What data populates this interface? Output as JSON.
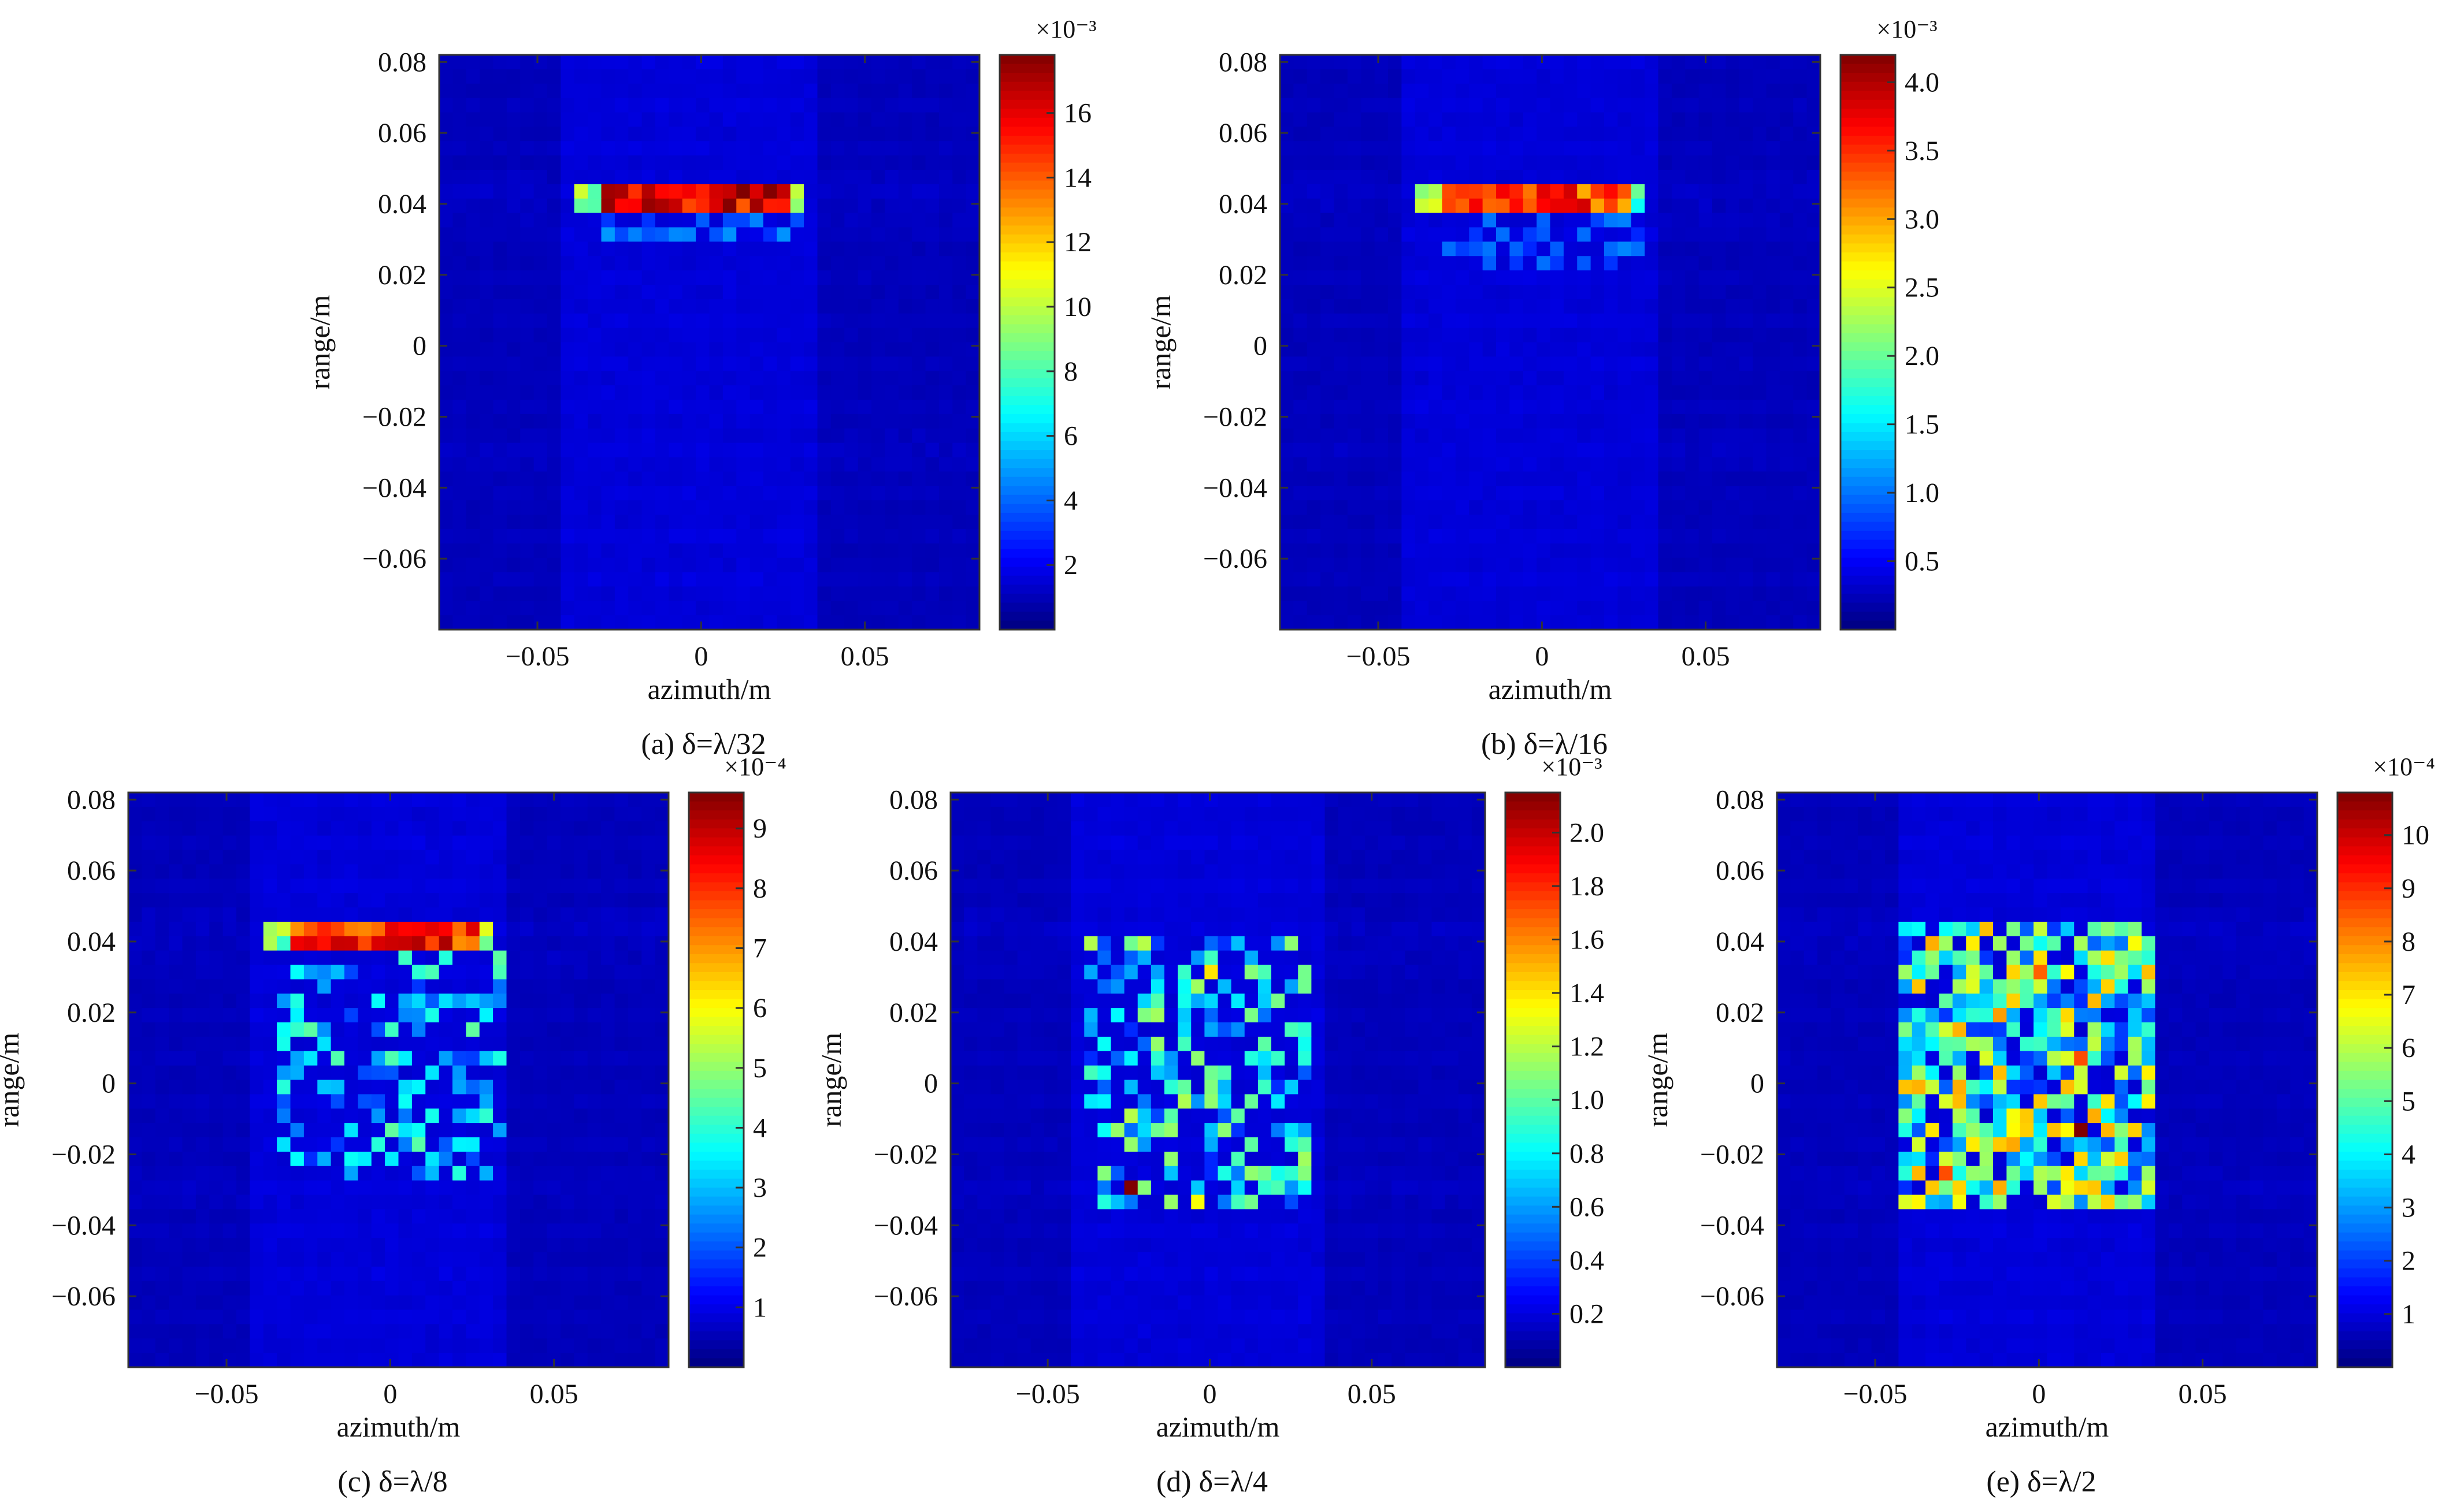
{
  "chart_data": [
    {
      "type": "heatmap",
      "panel": "a",
      "caption": "(a) δ=λ/32",
      "xlabel": "azimuth/m",
      "ylabel": "range/m",
      "xlim": [
        -0.08,
        0.085
      ],
      "ylim": [
        -0.08,
        0.082
      ],
      "xticks": [
        -0.05,
        0,
        0.05
      ],
      "xtick_labels": [
        "−0.05",
        "0",
        "0.05"
      ],
      "yticks": [
        0.08,
        0.06,
        0.04,
        0.02,
        0,
        -0.02,
        -0.04,
        -0.06
      ],
      "ytick_labels": [
        "0.08",
        "0.06",
        "0.04",
        "0.02",
        "0",
        "−0.02",
        "−0.04",
        "−0.06"
      ],
      "colorbar": {
        "min": 0,
        "max": 17.8,
        "colormap": "jet",
        "ticks": [
          2,
          4,
          6,
          8,
          10,
          12,
          14,
          16
        ],
        "tick_labels": [
          "2",
          "4",
          "6",
          "8",
          "10",
          "12",
          "14",
          "16"
        ],
        "exponent_label": "×10⁻³"
      },
      "grid": {
        "nx": 40,
        "ny": 40
      },
      "pattern": "strip",
      "strip": {
        "x0": -0.037,
        "x1": 0.033,
        "y0": 0.036,
        "y1": 0.047,
        "peak": 1.0
      },
      "scatter": {
        "x0": -0.035,
        "x1": 0.03,
        "y0": 0.028,
        "y1": 0.036,
        "density": 0.5,
        "amp": 0.12,
        "seed": 11
      }
    },
    {
      "type": "heatmap",
      "panel": "b",
      "caption": "(b) δ=λ/16",
      "xlabel": "azimuth/m",
      "ylabel": "range/m",
      "xlim": [
        -0.08,
        0.085
      ],
      "ylim": [
        -0.08,
        0.082
      ],
      "xticks": [
        -0.05,
        0,
        0.05
      ],
      "xtick_labels": [
        "−0.05",
        "0",
        "0.05"
      ],
      "yticks": [
        0.08,
        0.06,
        0.04,
        0.02,
        0,
        -0.02,
        -0.04,
        -0.06
      ],
      "ytick_labels": [
        "0.08",
        "0.06",
        "0.04",
        "0.02",
        "0",
        "−0.02",
        "−0.04",
        "−0.06"
      ],
      "colorbar": {
        "min": 0,
        "max": 4.2,
        "colormap": "jet",
        "ticks": [
          0.5,
          1.0,
          1.5,
          2.0,
          2.5,
          3.0,
          3.5,
          4.0
        ],
        "tick_labels": [
          "0.5",
          "1.0",
          "1.5",
          "2.0",
          "2.5",
          "3.0",
          "3.5",
          "4.0"
        ],
        "exponent_label": "×10⁻³"
      },
      "grid": {
        "nx": 40,
        "ny": 40
      },
      "pattern": "strip",
      "strip": {
        "x0": -0.037,
        "x1": 0.033,
        "y0": 0.036,
        "y1": 0.047,
        "peak": 0.92
      },
      "scatter": {
        "x0": -0.035,
        "x1": 0.03,
        "y0": 0.022,
        "y1": 0.036,
        "density": 0.4,
        "amp": 0.1,
        "seed": 23
      }
    },
    {
      "type": "heatmap",
      "panel": "c",
      "caption": "(c) δ=λ/8",
      "xlabel": "azimuth/m",
      "ylabel": "range/m",
      "xlim": [
        -0.08,
        0.085
      ],
      "ylim": [
        -0.08,
        0.082
      ],
      "xticks": [
        -0.05,
        0,
        0.05
      ],
      "xtick_labels": [
        "−0.05",
        "0",
        "0.05"
      ],
      "yticks": [
        0.08,
        0.06,
        0.04,
        0.02,
        0,
        -0.02,
        -0.04,
        -0.06
      ],
      "ytick_labels": [
        "0.08",
        "0.06",
        "0.04",
        "0.02",
        "0",
        "−0.02",
        "−0.04",
        "−0.06"
      ],
      "colorbar": {
        "min": 0,
        "max": 9.6,
        "colormap": "jet",
        "ticks": [
          1,
          2,
          3,
          4,
          5,
          6,
          7,
          8,
          9
        ],
        "tick_labels": [
          "1",
          "2",
          "3",
          "4",
          "5",
          "6",
          "7",
          "8",
          "9"
        ],
        "exponent_label": "×10⁻⁴"
      },
      "grid": {
        "nx": 40,
        "ny": 40
      },
      "pattern": "strip",
      "strip": {
        "x0": -0.037,
        "x1": 0.033,
        "y0": 0.038,
        "y1": 0.047,
        "peak": 0.96
      },
      "scatter": {
        "x0": -0.035,
        "x1": 0.035,
        "y0": -0.026,
        "y1": 0.037,
        "density": 0.42,
        "amp": 0.32,
        "seed": 37
      }
    },
    {
      "type": "heatmap",
      "panel": "d",
      "caption": "(d) δ=λ/4",
      "xlabel": "azimuth/m",
      "ylabel": "range/m",
      "xlim": [
        -0.08,
        0.085
      ],
      "ylim": [
        -0.08,
        0.082
      ],
      "xticks": [
        -0.05,
        0,
        0.05
      ],
      "xtick_labels": [
        "−0.05",
        "0",
        "0.05"
      ],
      "yticks": [
        0.08,
        0.06,
        0.04,
        0.02,
        0,
        -0.02,
        -0.04,
        -0.06
      ],
      "ytick_labels": [
        "0.08",
        "0.06",
        "0.04",
        "0.02",
        "0",
        "−0.02",
        "−0.04",
        "−0.06"
      ],
      "colorbar": {
        "min": 0,
        "max": 2.15,
        "colormap": "jet",
        "ticks": [
          0.2,
          0.4,
          0.6,
          0.8,
          1.0,
          1.2,
          1.4,
          1.6,
          1.8,
          2.0
        ],
        "tick_labels": [
          "0.2",
          "0.4",
          "0.6",
          "0.8",
          "1.0",
          "1.2",
          "1.4",
          "1.6",
          "1.8",
          "2.0"
        ],
        "exponent_label": "×10⁻³"
      },
      "grid": {
        "nx": 40,
        "ny": 40
      },
      "pattern": "blob",
      "scatter": {
        "x0": -0.04,
        "x1": 0.032,
        "y0": -0.034,
        "y1": 0.04,
        "density": 0.45,
        "amp": 0.4,
        "seed": 53
      },
      "hotspots": [
        {
          "x": -0.025,
          "y": -0.03,
          "v": 1.0
        },
        {
          "x": 0.001,
          "y": 0.03,
          "v": 0.65
        },
        {
          "x": -0.005,
          "y": -0.033,
          "v": 0.62
        },
        {
          "x": -0.02,
          "y": 0.02,
          "v": 0.5
        }
      ]
    },
    {
      "type": "heatmap",
      "panel": "e",
      "caption": "(e) δ=λ/2",
      "xlabel": "azimuth/m",
      "ylabel": "range/m",
      "xlim": [
        -0.08,
        0.085
      ],
      "ylim": [
        -0.08,
        0.082
      ],
      "xticks": [
        -0.05,
        0,
        0.05
      ],
      "xtick_labels": [
        "−0.05",
        "0",
        "0.05"
      ],
      "yticks": [
        0.08,
        0.06,
        0.04,
        0.02,
        0,
        -0.02,
        -0.04,
        -0.06
      ],
      "ytick_labels": [
        "0.08",
        "0.06",
        "0.04",
        "0.02",
        "0",
        "−0.02",
        "−0.04",
        "−0.06"
      ],
      "colorbar": {
        "min": 0,
        "max": 10.8,
        "colormap": "jet",
        "ticks": [
          1,
          2,
          3,
          4,
          5,
          6,
          7,
          8,
          9,
          10
        ],
        "tick_labels": [
          "1",
          "2",
          "3",
          "4",
          "5",
          "6",
          "7",
          "8",
          "9",
          "10"
        ],
        "exponent_label": "×10⁻⁴"
      },
      "grid": {
        "nx": 40,
        "ny": 40
      },
      "pattern": "blob",
      "scatter": {
        "x0": -0.041,
        "x1": 0.037,
        "y0": -0.035,
        "y1": 0.045,
        "density": 0.85,
        "amp": 0.55,
        "seed": 71
      },
      "hotspots": [
        {
          "x": 0.013,
          "y": -0.013,
          "v": 1.0
        },
        {
          "x": -0.028,
          "y": -0.025,
          "v": 0.8
        },
        {
          "x": 0.001,
          "y": 0.03,
          "v": 0.78
        },
        {
          "x": 0.011,
          "y": 0.006,
          "v": 0.8
        },
        {
          "x": -0.035,
          "y": 0.0,
          "v": 0.7
        },
        {
          "x": -0.012,
          "y": 0.019,
          "v": 0.72
        },
        {
          "x": -0.025,
          "y": 0.017,
          "v": 0.7
        },
        {
          "x": 0.015,
          "y": -0.03,
          "v": 0.68
        }
      ]
    }
  ]
}
